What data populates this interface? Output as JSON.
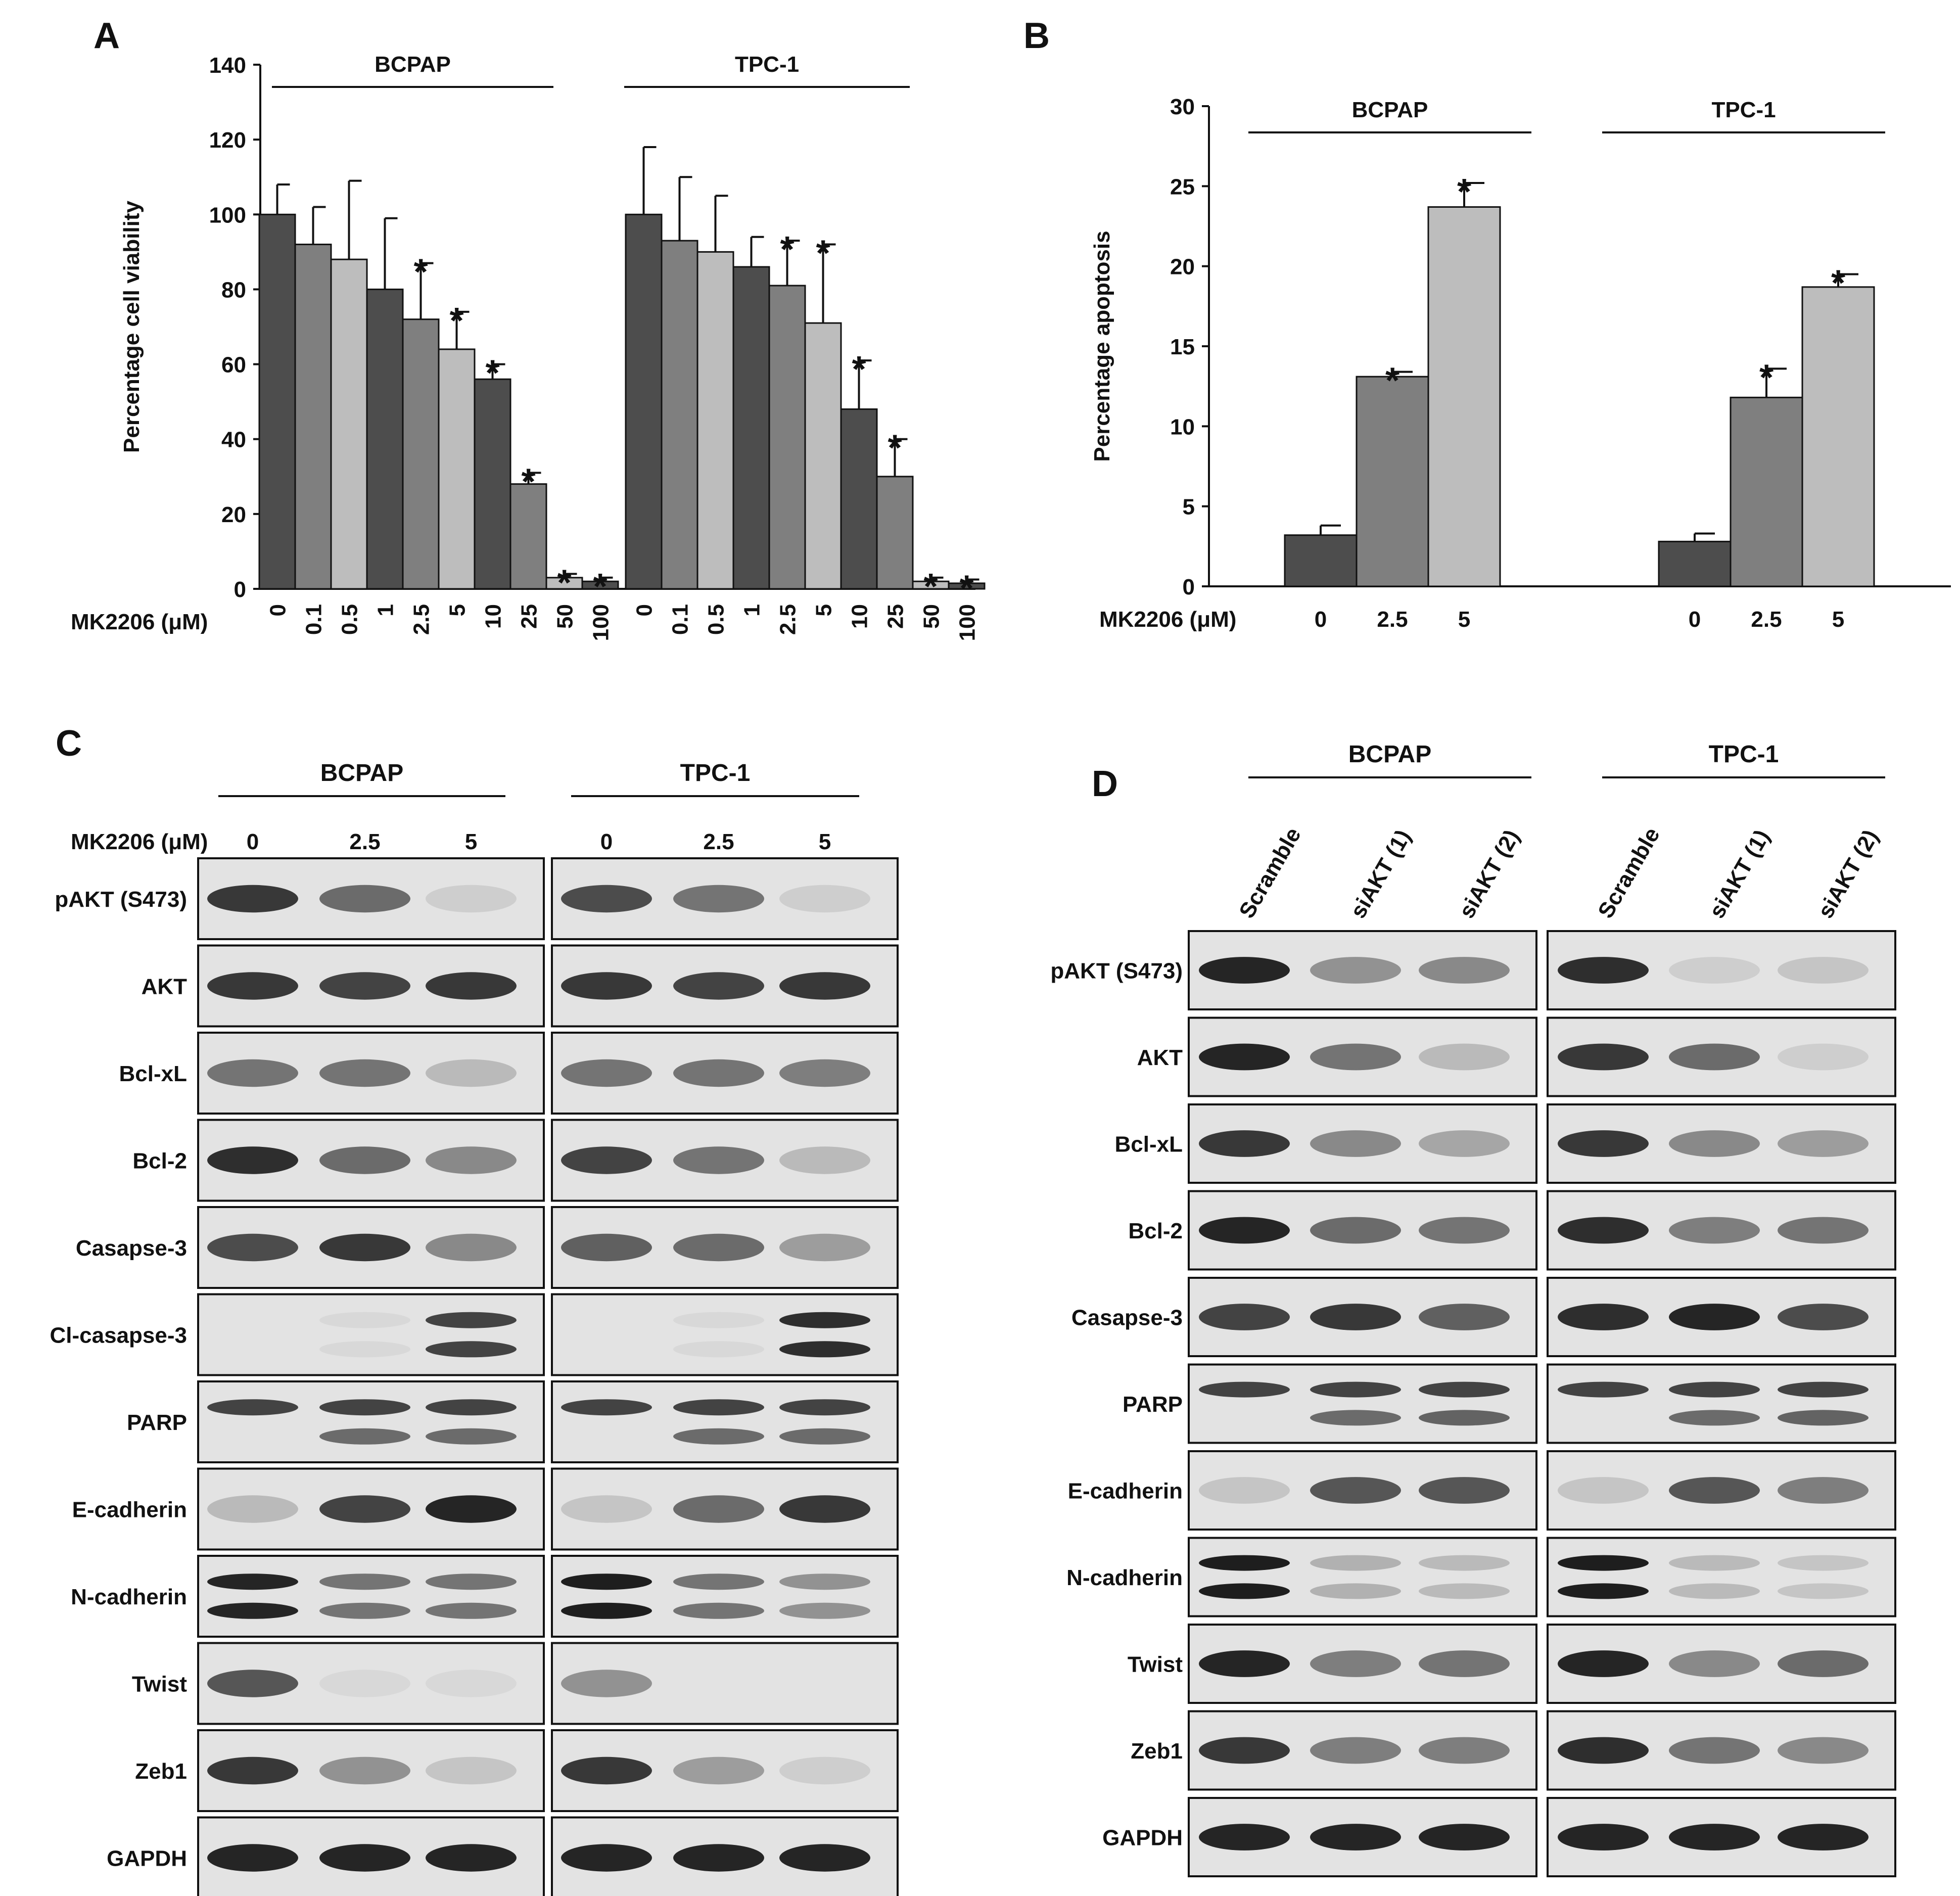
{
  "panels": {
    "A": "A",
    "B": "B",
    "C": "C",
    "D": "D"
  },
  "colors": {
    "dark": "#4d4d4d",
    "mid": "#7f7f7f",
    "light": "#bdbdbd",
    "axis": "#111111",
    "blot_bg": "#e3e3e3",
    "band": "#1a1a1a"
  },
  "chart_data": [
    {
      "panel": "A",
      "type": "bar",
      "ylabel": "Percentage cell viability",
      "xlabel": "MK2206 (μM)",
      "ylim": [
        0,
        140
      ],
      "yticks": [
        0,
        20,
        40,
        60,
        80,
        100,
        120,
        140
      ],
      "grid": false,
      "groups": [
        {
          "name": "BCPAP",
          "categories": [
            "0",
            "0.1",
            "0.5",
            "1",
            "2.5",
            "5",
            "10",
            "25",
            "50",
            "100"
          ],
          "values": [
            100,
            92,
            88,
            80,
            72,
            64,
            56,
            28,
            3,
            2
          ],
          "errors": [
            8,
            10,
            21,
            19,
            15,
            10,
            4,
            3,
            1,
            1
          ],
          "significant": [
            false,
            false,
            false,
            false,
            true,
            true,
            true,
            true,
            true,
            true
          ],
          "shades": [
            "dark",
            "mid",
            "light",
            "dark",
            "mid",
            "light",
            "dark",
            "mid",
            "light",
            "dark"
          ]
        },
        {
          "name": "TPC-1",
          "categories": [
            "0",
            "0.1",
            "0.5",
            "1",
            "2.5",
            "5",
            "10",
            "25",
            "50",
            "100"
          ],
          "values": [
            100,
            93,
            90,
            86,
            81,
            71,
            48,
            30,
            2,
            1.5
          ],
          "errors": [
            18,
            17,
            15,
            8,
            12,
            21,
            13,
            10,
            1,
            1
          ],
          "significant": [
            false,
            false,
            false,
            false,
            true,
            true,
            true,
            true,
            true,
            true
          ],
          "shades": [
            "dark",
            "mid",
            "light",
            "dark",
            "mid",
            "light",
            "dark",
            "mid",
            "light",
            "dark"
          ]
        }
      ],
      "annotation": "*"
    },
    {
      "panel": "B",
      "type": "bar",
      "ylabel": "Percentage apoptosis",
      "xlabel": "MK2206 (μM)",
      "ylim": [
        0,
        30
      ],
      "yticks": [
        0,
        5,
        10,
        15,
        20,
        25,
        30
      ],
      "grid": false,
      "groups": [
        {
          "name": "BCPAP",
          "categories": [
            "0",
            "2.5",
            "5"
          ],
          "values": [
            3.2,
            13.1,
            23.7
          ],
          "errors": [
            0.6,
            0.3,
            1.5
          ],
          "significant": [
            false,
            true,
            true
          ],
          "shades": [
            "dark",
            "mid",
            "light"
          ]
        },
        {
          "name": "TPC-1",
          "categories": [
            "0",
            "2.5",
            "5"
          ],
          "values": [
            2.8,
            11.8,
            18.7
          ],
          "errors": [
            0.5,
            1.8,
            0.8
          ],
          "significant": [
            false,
            true,
            true
          ],
          "shades": [
            "dark",
            "mid",
            "light"
          ]
        }
      ],
      "annotation": "*"
    }
  ],
  "blots": {
    "C": {
      "treatment_label": "MK2206 (μM)",
      "lanes": [
        "0",
        "2.5",
        "5"
      ],
      "cells": [
        "BCPAP",
        "TPC-1"
      ],
      "rows": [
        "pAKT (S473)",
        "AKT",
        "Bcl-xL",
        "Bcl-2",
        "Casapse-3",
        "Cl-casapse-3",
        "PARP",
        "E-cadherin",
        "N-cadherin",
        "Twist",
        "Zeb1",
        "GAPDH"
      ]
    },
    "D": {
      "lanes": [
        "Scramble",
        "siAKT (1)",
        "siAKT (2)"
      ],
      "cells": [
        "BCPAP",
        "TPC-1"
      ],
      "rows": [
        "pAKT (S473)",
        "AKT",
        "Bcl-xL",
        "Bcl-2",
        "Casapse-3",
        "PARP",
        "E-cadherin",
        "N-cadherin",
        "Twist",
        "Zeb1",
        "GAPDH"
      ]
    }
  }
}
